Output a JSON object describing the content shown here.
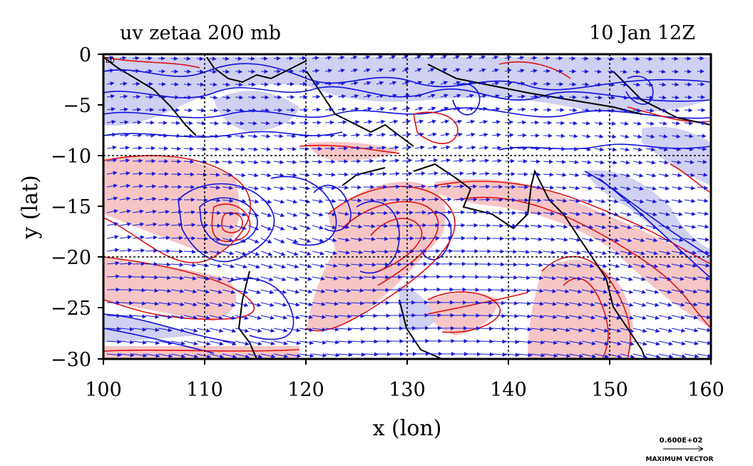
{
  "chart_data": {
    "type": "heatmap",
    "title_left": "uv zetaa 200 mb",
    "title_right": "10 Jan 12Z",
    "xlabel": "x (lon)",
    "ylabel": "y (lat)",
    "xlim": [
      100,
      160
    ],
    "ylim": [
      -30,
      0
    ],
    "xticks": [
      "100",
      "110",
      "120",
      "130",
      "140",
      "150",
      "160"
    ],
    "yticks": [
      "0",
      "−5",
      "−10",
      "−15",
      "−20",
      "−25",
      "−30"
    ],
    "gridlines_x": [
      110,
      120,
      130,
      140,
      150
    ],
    "gridlines_y": [
      -10,
      -20
    ],
    "fields": {
      "contours": "absolute vorticity (zetaa)",
      "vectors": "wind uv"
    },
    "colors": {
      "positive_contour": "#e01010",
      "positive_fill": "#f6c6c6",
      "negative_contour": "#1010e0",
      "negative_fill": "#c8c8f0",
      "coastline": "#000000",
      "vectors": "#1a1ad8"
    },
    "reference_vector": {
      "value_label": "0.600E+02",
      "caption": "MAXIMUM VECTOR"
    },
    "corner_label": "E0"
  }
}
